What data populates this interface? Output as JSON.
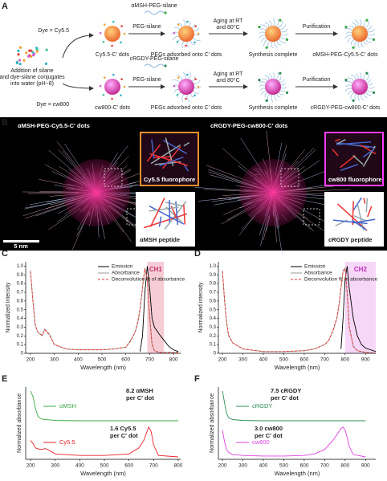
{
  "panel_a": {
    "label": "A",
    "start_lines": [
      "Addition of silane",
      "and dye-silane conjugates",
      "into water (pH~8)"
    ],
    "top": {
      "dye": "Dye = Cy5.5",
      "targeting_silane": "αMSH-PEG-silane",
      "peg_silane": "PEG-silane",
      "aging": [
        "Aging at RT",
        "and 80°C"
      ],
      "purification": "Purification",
      "stages": [
        "Cy5.5-C′ dots",
        "PEGs adsorbed onto C′ dots",
        "Synthesis complete",
        "αMSH-PEG-Cy5.5-C′ dots"
      ]
    },
    "bottom": {
      "dye": "Dye = cw800",
      "targeting_silane": "cRGDY-PEG-silane",
      "peg_silane": "PEG-silane",
      "aging": [
        "Aging at RT",
        "and 80°C"
      ],
      "purification": "Purification",
      "stages": [
        "cw800-C′ dots",
        "PEGs adsorbed onto C′ dots",
        "Synthesis complete",
        "cRGDY-PEG-cw800-C′ dots"
      ]
    }
  },
  "panel_b": {
    "label": "B",
    "left_title": "αMSH-PEG-Cy5.5-C′ dots",
    "right_title": "cRGDY-PEG-cw800-C′ dots",
    "insets": [
      "Cy5.5 fluorophore",
      "αMSH peptide",
      "cw800 fluorophore",
      "cRGDY peptide"
    ],
    "scale_bar": "5 nm"
  },
  "chart_data": [
    {
      "type": "line",
      "panel": "C",
      "xlabel": "Wavelength (nm)",
      "ylabel": "Normalized intensity",
      "legend": "upper center",
      "x": [
        200,
        210,
        220,
        230,
        240,
        250,
        260,
        280,
        300,
        350,
        400,
        450,
        500,
        550,
        600,
        620,
        640,
        650,
        660,
        670,
        680,
        690,
        700,
        710,
        720,
        740,
        760,
        780,
        800,
        820
      ],
      "xlim": [
        180,
        830
      ],
      "xticks": [
        200,
        300,
        400,
        500,
        600,
        700,
        800
      ],
      "ylim": [
        0,
        1.05
      ],
      "yticks": [
        0,
        0.1,
        0.2,
        0.3,
        0.4,
        0.5,
        0.6,
        0.7,
        0.8,
        0.9,
        {
          "value": 1,
          "label": "1.0"
        }
      ],
      "shade": {
        "label": "CH1",
        "range": [
          690,
          760
        ],
        "color": "#f2b8c4",
        "text_color": "#c2306a"
      },
      "series": [
        {
          "name": "Emission",
          "color": "#000000",
          "values": [
            null,
            null,
            null,
            null,
            null,
            null,
            null,
            null,
            null,
            null,
            null,
            null,
            null,
            null,
            null,
            null,
            null,
            null,
            0.02,
            0.2,
            0.7,
            1.0,
            0.75,
            0.4,
            0.3,
            0.22,
            0.15,
            0.08,
            0.04,
            0.02
          ]
        },
        {
          "name": "Absorbance",
          "color": "#999999",
          "values": [
            0.95,
            0.6,
            0.32,
            0.25,
            0.22,
            0.2,
            0.28,
            0.22,
            0.1,
            0.05,
            0.04,
            0.04,
            0.04,
            0.05,
            0.07,
            0.15,
            0.25,
            0.35,
            0.5,
            0.75,
            0.98,
            0.85,
            0.4,
            0.1,
            0.03,
            0.01,
            0.01,
            0.01,
            0.01,
            0.01
          ]
        },
        {
          "name": "Deconvolution fit of absorbance",
          "color": "#e8382f",
          "dash": true,
          "values": [
            0.94,
            0.62,
            0.33,
            0.25,
            0.22,
            0.21,
            0.27,
            0.21,
            0.1,
            0.05,
            0.04,
            0.04,
            0.04,
            0.05,
            0.07,
            0.14,
            0.25,
            0.36,
            0.52,
            0.76,
            0.97,
            0.84,
            0.42,
            0.11,
            0.03,
            0.01,
            0.01,
            0.01,
            0.01,
            0.01
          ]
        }
      ]
    },
    {
      "type": "line",
      "panel": "D",
      "xlabel": "Wavelength (nm)",
      "ylabel": "Normalized intensity",
      "legend": "upper center",
      "x": [
        200,
        210,
        220,
        230,
        250,
        300,
        400,
        500,
        600,
        650,
        700,
        720,
        740,
        760,
        770,
        780,
        790,
        800,
        810,
        820,
        840,
        860,
        880,
        900,
        950
      ],
      "xlim": [
        180,
        950
      ],
      "xticks": [
        200,
        300,
        400,
        500,
        600,
        700,
        800,
        900
      ],
      "ylim": [
        0,
        1.05
      ],
      "yticks": [
        0,
        0.1,
        0.2,
        0.3,
        0.4,
        0.5,
        0.6,
        0.7,
        0.8,
        0.9,
        {
          "value": 1,
          "label": "1.0"
        }
      ],
      "shade": {
        "label": "CH2",
        "range": [
          800,
          950
        ],
        "color": "#f3c6f3",
        "text_color": "#c030c0"
      },
      "series": [
        {
          "name": "Emission",
          "color": "#000000",
          "values": [
            null,
            null,
            null,
            null,
            null,
            null,
            null,
            null,
            null,
            null,
            null,
            null,
            null,
            null,
            null,
            0.05,
            0.4,
            0.85,
            1.0,
            0.75,
            0.4,
            0.2,
            0.1,
            0.06,
            0.02
          ]
        },
        {
          "name": "Absorbance",
          "color": "#999999",
          "values": [
            0.95,
            0.6,
            0.35,
            0.2,
            0.12,
            0.05,
            0.02,
            0.02,
            0.03,
            0.05,
            0.1,
            0.15,
            0.25,
            0.4,
            0.55,
            0.75,
            0.95,
            0.98,
            0.7,
            0.3,
            0.08,
            0.03,
            0.02,
            0.01,
            0.0
          ]
        },
        {
          "name": "Deconvolution fit of absorbance",
          "color": "#e8382f",
          "dash": true,
          "values": [
            0.94,
            0.62,
            0.36,
            0.21,
            0.12,
            0.05,
            0.02,
            0.02,
            0.03,
            0.05,
            0.1,
            0.15,
            0.26,
            0.41,
            0.56,
            0.76,
            0.94,
            0.97,
            0.71,
            0.31,
            0.08,
            0.03,
            0.02,
            0.01,
            0.0
          ]
        }
      ]
    },
    {
      "type": "line",
      "panel": "E",
      "xlabel": "Wavelength (nm)",
      "ylabel": "Normalized absorbance",
      "x": [
        200,
        210,
        220,
        230,
        240,
        250,
        260,
        280,
        300,
        400,
        500,
        600,
        640,
        660,
        680,
        690,
        700,
        720,
        800
      ],
      "xlim": [
        180,
        810
      ],
      "xticks": [
        200,
        300,
        400,
        500,
        600,
        700,
        800
      ],
      "series": [
        {
          "name": "αMSH",
          "color": "#3aa846",
          "ylim": [
            0,
            1.05
          ],
          "annotation": [
            "8.2 αMSH",
            "per C′ dot"
          ],
          "values": [
            1.0,
            0.8,
            0.4,
            0.15,
            0.08,
            0.05,
            0.04,
            0.03,
            0.01,
            0,
            0,
            0,
            0,
            0,
            0,
            0,
            0,
            0,
            0
          ]
        },
        {
          "name": "Cy5.5",
          "color": "#e8202a",
          "ylim": [
            0,
            1.05
          ],
          "annotation": [
            "1.6 Cy5.5",
            "per C′ dot"
          ],
          "values": [
            0.55,
            0.45,
            0.3,
            0.27,
            0.25,
            0.26,
            0.28,
            0.2,
            0.1,
            0.05,
            0.05,
            0.1,
            0.3,
            0.55,
            1.0,
            0.85,
            0.4,
            0.05,
            0
          ]
        }
      ]
    },
    {
      "type": "line",
      "panel": "F",
      "xlabel": "Wavelength (nm)",
      "ylabel": "Normalized absorbance",
      "x": [
        200,
        210,
        220,
        230,
        250,
        300,
        400,
        500,
        600,
        650,
        700,
        740,
        760,
        780,
        790,
        800,
        810,
        820,
        840,
        900
      ],
      "xlim": [
        180,
        950
      ],
      "xticks": [
        200,
        300,
        400,
        500,
        600,
        700,
        800,
        900
      ],
      "series": [
        {
          "name": "cRGDY",
          "color": "#2e8b57",
          "ylim": [
            0,
            1.05
          ],
          "annotation": [
            "7.5 cRGDY",
            "per C′ dot"
          ],
          "values": [
            1.0,
            0.6,
            0.25,
            0.1,
            0.04,
            0.01,
            0,
            0,
            0,
            0,
            0,
            0,
            0,
            0,
            0,
            0,
            0,
            0,
            0,
            0
          ]
        },
        {
          "name": "cw800",
          "color": "#e040e0",
          "ylim": [
            0,
            1.05
          ],
          "annotation": [
            "3.0 cw800",
            "per C′ dot"
          ],
          "values": [
            0.9,
            0.5,
            0.25,
            0.15,
            0.08,
            0.05,
            0.03,
            0.03,
            0.05,
            0.1,
            0.25,
            0.55,
            0.75,
            0.95,
            1.0,
            0.9,
            0.65,
            0.35,
            0.08,
            0
          ]
        }
      ]
    }
  ]
}
